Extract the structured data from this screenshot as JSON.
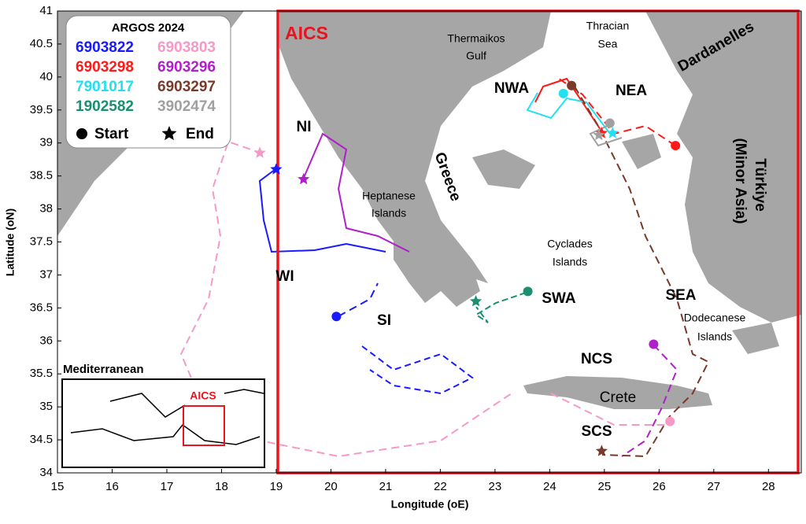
{
  "map": {
    "xlabel": "Longitude (oE)",
    "ylabel": "Latitude (oN)",
    "xlim": [
      15,
      28.6
    ],
    "ylim": [
      34,
      41
    ],
    "xticks": [
      15,
      16,
      17,
      18,
      19,
      20,
      21,
      22,
      23,
      24,
      25,
      26,
      27,
      28
    ],
    "yticks": [
      34,
      {
        "value": 34.5,
        "label": "34.5"
      },
      35,
      {
        "value": 35.5,
        "label": "35.5"
      },
      36,
      {
        "value": 36.5,
        "label": "36.5"
      },
      37,
      {
        "value": 37.5,
        "label": "37.5"
      },
      38,
      {
        "value": 38.5,
        "label": "38.5"
      },
      39,
      {
        "value": 39.5,
        "label": "39.5"
      },
      40,
      {
        "value": 40.5,
        "label": "40.5"
      },
      41
    ],
    "box_label": "AICS",
    "legend": {
      "title": "ARGOS 2024",
      "start": "Start",
      "end": "End"
    },
    "floats": [
      {
        "id": "6903822",
        "color": "#1a1aff",
        "start": [
          20.1,
          36.37
        ],
        "end": [
          19.0,
          38.6
        ]
      },
      {
        "id": "6903803",
        "color": "#f59ac8",
        "start": [
          26.2,
          34.78
        ],
        "end": [
          18.7,
          38.85
        ]
      },
      {
        "id": "6903298",
        "color": "#ff1a1a",
        "start": [
          26.3,
          38.96
        ],
        "end": [
          24.95,
          39.15
        ]
      },
      {
        "id": "6903296",
        "color": "#b020c8",
        "start": [
          25.9,
          35.95
        ],
        "end": [
          19.5,
          38.45
        ]
      },
      {
        "id": "7901017",
        "color": "#22e0f0",
        "start": [
          24.25,
          39.75
        ],
        "end": [
          25.15,
          39.15
        ]
      },
      {
        "id": "6903297",
        "color": "#7a3a2a",
        "start": [
          24.4,
          39.87
        ],
        "end": [
          24.95,
          34.33
        ]
      },
      {
        "id": "1902582",
        "color": "#1a9070",
        "start": [
          23.6,
          36.75
        ],
        "end": [
          22.65,
          36.6
        ]
      },
      {
        "id": "3902474",
        "color": "#a0a0a0",
        "start": [
          25.1,
          39.3
        ],
        "end": [
          24.9,
          39.12
        ]
      }
    ],
    "labels": {
      "thermaikos": "Thermaikos",
      "gulf": "Gulf",
      "thracian": "Thracian",
      "sea": "Sea",
      "dardanelles": "Dardanelles",
      "nwa": "NWA",
      "nea": "NEA",
      "ni": "NI",
      "greece": "Greece",
      "turkiye": "Türkiye",
      "minor_asia": "(Minor Asia)",
      "heptanese": "Heptanese",
      "heptanese2": "Islands",
      "cyclades": "Cyclades",
      "cyclades2": "Islands",
      "wi": "WI",
      "si": "SI",
      "swa": "SWA",
      "sea_region": "SEA",
      "dodecanese": "Dodecanese",
      "dodecanese2": "Islands",
      "ncs": "NCS",
      "crete": "Crete",
      "scs": "SCS",
      "inset_title": "Mediterranean",
      "inset_box": "AICS"
    }
  }
}
